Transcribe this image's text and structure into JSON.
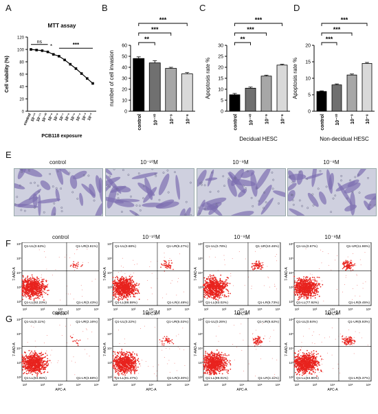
{
  "panel_letters": {
    "A": "A",
    "B": "B",
    "C": "C",
    "D": "D",
    "E": "E",
    "F": "F",
    "G": "G"
  },
  "colors": {
    "black": "#000000",
    "dark_gray": "#707070",
    "mid_gray": "#a7a7a7",
    "light_gray": "#d9d9d9",
    "flow_red": "#e8231e",
    "microscopy_bg": "#cfd0df",
    "microscopy_cell": "#7d6fb0"
  },
  "chart_data": [
    {
      "id": "A",
      "type": "line",
      "title": "MTT assay",
      "xlabel": "PCB118 exposure",
      "ylabel": "Cell viability (%)",
      "ylim": [
        0,
        120
      ],
      "yticks": [
        0,
        20,
        40,
        60,
        80,
        100,
        120
      ],
      "categories": [
        "control",
        "10⁻¹²",
        "10⁻¹¹",
        "10⁻¹⁰",
        "10⁻⁹",
        "10⁻⁸",
        "10⁻⁷",
        "10⁻⁶",
        "10⁻⁵",
        "10⁻⁴",
        "10⁻³",
        "10⁻²"
      ],
      "values": [
        100,
        99,
        98,
        96,
        92,
        89,
        83,
        76,
        69,
        61,
        53,
        45
      ],
      "annotations": [
        {
          "text": "ns"
        },
        {
          "text": "*"
        },
        {
          "text": "***"
        }
      ]
    },
    {
      "id": "B",
      "type": "bar",
      "title": "",
      "xlabel": "",
      "ylabel": "number of cell invasion",
      "ylim": [
        0,
        60
      ],
      "yticks": [
        0,
        10,
        20,
        30,
        40,
        50,
        60
      ],
      "categories": [
        "control",
        "10⁻¹⁰",
        "10⁻⁹",
        "10⁻⁸"
      ],
      "values": [
        48,
        44,
        39,
        34
      ],
      "errors": [
        1.5,
        2,
        1,
        1.2
      ],
      "significance": [
        {
          "text": "**"
        },
        {
          "text": "***"
        },
        {
          "text": "***"
        }
      ]
    },
    {
      "id": "C",
      "type": "bar",
      "title": "",
      "xlabel": "Decidual HESC",
      "ylabel": "Apoptosis rate %",
      "ylim": [
        0,
        30
      ],
      "yticks": [
        0,
        5,
        10,
        15,
        20,
        25,
        30
      ],
      "categories": [
        "control",
        "10⁻¹⁰",
        "10⁻⁹",
        "10⁻⁸"
      ],
      "values": [
        7.5,
        10.5,
        16,
        21
      ],
      "errors": [
        0.6,
        0.5,
        0.4,
        0.4
      ],
      "significance": [
        {
          "text": "**"
        },
        {
          "text": "***"
        },
        {
          "text": "***"
        }
      ]
    },
    {
      "id": "D",
      "type": "bar",
      "title": "",
      "xlabel": "Non-decidual HESC",
      "ylabel": "Apoptosis rate %",
      "ylim": [
        0,
        20
      ],
      "yticks": [
        0,
        5,
        10,
        15,
        20
      ],
      "categories": [
        "control",
        "10⁻¹⁰",
        "10⁻⁹",
        "10⁻⁸"
      ],
      "values": [
        6,
        8,
        11,
        14.5
      ],
      "errors": [
        0.2,
        0.3,
        0.3,
        0.3
      ],
      "significance": [
        {
          "text": "***"
        },
        {
          "text": "***"
        },
        {
          "text": "***"
        }
      ]
    }
  ],
  "microscopy": {
    "titles": [
      "control",
      "10⁻¹⁰M",
      "10⁻⁹M",
      "10⁻⁸M"
    ]
  },
  "flow": {
    "x_axis_label": "APC-A",
    "y_axis_label": "7-AAD-A",
    "x_ticks": [
      "10²",
      "10³",
      "10⁴",
      "10⁵",
      "10⁶"
    ],
    "y_ticks": [
      "10²",
      "10³",
      "10⁴",
      "10⁵",
      "10⁶"
    ],
    "rows": [
      {
        "id": "F",
        "titles": [
          "control",
          "10⁻¹⁰M",
          "10⁻⁹M",
          "10⁻⁸M"
        ],
        "quadrants": [
          {
            "ul": "Q1-UL(0.53%)",
            "ur": "Q1-UR(3.81%)",
            "ll": "Q1-LL(92.23%)",
            "lr": "Q1-LR(3.43%)"
          },
          {
            "ul": "Q1-UL(0.68%)",
            "ur": "Q1-UR(6.27%)",
            "ll": "Q1-LL(88.59%)",
            "lr": "Q1-LR(4.48%)"
          },
          {
            "ul": "Q1-UL(0.78%)",
            "ur": "Q1-UR(10.46%)",
            "ll": "Q1-LL(83.02%)",
            "lr": "Q1-LR(5.73%)"
          },
          {
            "ul": "Q1-UL(0.67%)",
            "ur": "Q1-UR(11.96%)",
            "ll": "Q1-LL(77.92%)",
            "lr": "Q1-LR(9.45%)"
          }
        ]
      },
      {
        "id": "G",
        "titles": [
          "control",
          "10⁻¹⁰M",
          "10⁻⁹M",
          "10⁻⁸M"
        ],
        "quadrants": [
          {
            "ul": "Q1-UL(0.11%)",
            "ur": "Q1-UR(2.16%)",
            "ll": "Q1-LL(94.05%)",
            "lr": "Q1-LR(3.68%)"
          },
          {
            "ul": "Q1-UL(0.22%)",
            "ur": "Q1-UR(5.02%)",
            "ll": "Q1-LL(91.47%)",
            "lr": "Q1-LR(3.30%)"
          },
          {
            "ul": "Q1-UL(0.26%)",
            "ur": "Q1-UR(6.62%)",
            "ll": "Q1-LL(89.01%)",
            "lr": "Q1-LR(4.11%)"
          },
          {
            "ul": "Q1-UL(0.84%)",
            "ur": "Q1-UR(8.93%)",
            "ll": "Q1-LL(84.86%)",
            "lr": "Q1-LR(5.37%)"
          }
        ]
      }
    ]
  }
}
